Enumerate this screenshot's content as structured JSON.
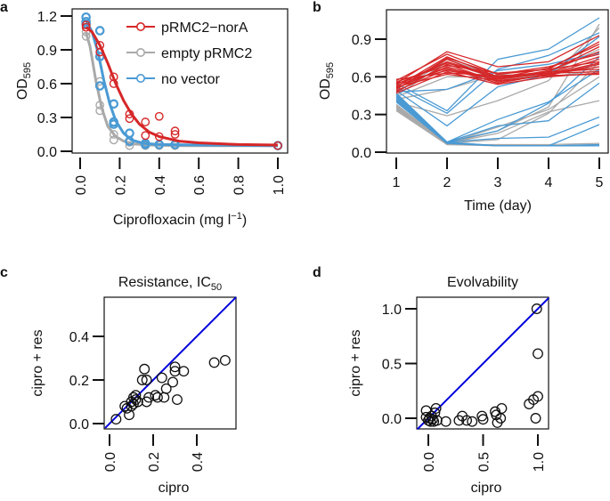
{
  "colors": {
    "red": "#d62728",
    "grey": "#a9a9a9",
    "blue": "#4a9ad4",
    "diag": "#0000dd",
    "axis": "#111111"
  },
  "chart_data": [
    {
      "panel": "a",
      "type": "scatter",
      "title": "",
      "xlabel": "Ciprofloxacin (mg l",
      "xlabel_sup": "−1",
      "xlabel_tail": ")",
      "ylabel": "OD",
      "ylabel_sub": "595",
      "xlim": [
        0,
        1.0
      ],
      "ylim": [
        0,
        1.2
      ],
      "xticks": [
        "0.0",
        "0.2",
        "0.4",
        "0.6",
        "0.8",
        "1.0"
      ],
      "yticks": [
        "0.0",
        "0.3",
        "0.6",
        "0.9",
        "1.2"
      ],
      "legend_position": "top-right",
      "series": [
        {
          "name": "pRMC2−norA",
          "color_key": "red",
          "points": [
            [
              0.03,
              1.1
            ],
            [
              0.03,
              1.12
            ],
            [
              0.1,
              0.94
            ],
            [
              0.1,
              0.88
            ],
            [
              0.17,
              0.66
            ],
            [
              0.17,
              0.6
            ],
            [
              0.25,
              0.33
            ],
            [
              0.25,
              0.29
            ],
            [
              0.33,
              0.26
            ],
            [
              0.33,
              0.14
            ],
            [
              0.4,
              0.31
            ],
            [
              0.4,
              0.13
            ],
            [
              0.48,
              0.18
            ],
            [
              0.48,
              0.15
            ],
            [
              1.0,
              0.05
            ]
          ],
          "curve": [
            [
              0.03,
              1.1
            ],
            [
              0.06,
              1.06
            ],
            [
              0.1,
              0.94
            ],
            [
              0.14,
              0.78
            ],
            [
              0.18,
              0.6
            ],
            [
              0.22,
              0.45
            ],
            [
              0.26,
              0.33
            ],
            [
              0.3,
              0.24
            ],
            [
              0.35,
              0.17
            ],
            [
              0.4,
              0.13
            ],
            [
              0.5,
              0.09
            ],
            [
              0.6,
              0.075
            ],
            [
              0.8,
              0.06
            ],
            [
              1.0,
              0.055
            ]
          ]
        },
        {
          "name": "empty pRMC2",
          "color_key": "grey",
          "points": [
            [
              0.03,
              1.02
            ],
            [
              0.03,
              1.06
            ],
            [
              0.1,
              0.62
            ],
            [
              0.1,
              0.41
            ],
            [
              0.1,
              0.36
            ],
            [
              0.17,
              0.15
            ],
            [
              0.17,
              0.1
            ],
            [
              0.25,
              0.08
            ],
            [
              0.25,
              0.05
            ],
            [
              0.33,
              0.05
            ],
            [
              0.4,
              0.05
            ],
            [
              0.48,
              0.05
            ],
            [
              1.0,
              0.05
            ]
          ],
          "curve": [
            [
              0.03,
              1.05
            ],
            [
              0.05,
              0.93
            ],
            [
              0.08,
              0.62
            ],
            [
              0.11,
              0.38
            ],
            [
              0.14,
              0.22
            ],
            [
              0.18,
              0.13
            ],
            [
              0.22,
              0.09
            ],
            [
              0.27,
              0.065
            ],
            [
              0.35,
              0.055
            ],
            [
              0.5,
              0.05
            ],
            [
              1.0,
              0.05
            ]
          ]
        },
        {
          "name": "no vector",
          "color_key": "blue",
          "points": [
            [
              0.03,
              1.19
            ],
            [
              0.03,
              1.15
            ],
            [
              0.03,
              1.13
            ],
            [
              0.1,
              1.07
            ],
            [
              0.1,
              0.84
            ],
            [
              0.1,
              0.58
            ],
            [
              0.17,
              0.42
            ],
            [
              0.17,
              0.26
            ],
            [
              0.17,
              0.24
            ],
            [
              0.25,
              0.16
            ],
            [
              0.25,
              0.09
            ],
            [
              0.33,
              0.07
            ],
            [
              0.33,
              0.06
            ],
            [
              0.4,
              0.06
            ],
            [
              0.48,
              0.06
            ],
            [
              1.0,
              0.05
            ]
          ],
          "curve": [
            [
              0.03,
              1.16
            ],
            [
              0.06,
              1.06
            ],
            [
              0.09,
              0.88
            ],
            [
              0.12,
              0.63
            ],
            [
              0.15,
              0.42
            ],
            [
              0.18,
              0.27
            ],
            [
              0.22,
              0.16
            ],
            [
              0.26,
              0.1
            ],
            [
              0.32,
              0.07
            ],
            [
              0.4,
              0.06
            ],
            [
              0.6,
              0.055
            ],
            [
              1.0,
              0.05
            ]
          ]
        }
      ]
    },
    {
      "panel": "b",
      "type": "line",
      "xlabel": "Time (day)",
      "ylabel": "OD",
      "ylabel_sub": "595",
      "xlim": [
        1,
        5
      ],
      "ylim": [
        0,
        1.1
      ],
      "xticks": [
        "1",
        "2",
        "3",
        "4",
        "5"
      ],
      "yticks": [
        "0.0",
        "0.3",
        "0.6",
        "0.9"
      ],
      "x": [
        1,
        2,
        3,
        4,
        5
      ],
      "series": [
        {
          "color_key": "red",
          "values": [
            0.55,
            0.8,
            0.68,
            0.72,
            0.93
          ]
        },
        {
          "color_key": "red",
          "values": [
            0.57,
            0.78,
            0.62,
            0.66,
            0.88
          ]
        },
        {
          "color_key": "red",
          "values": [
            0.52,
            0.76,
            0.6,
            0.64,
            0.84
          ]
        },
        {
          "color_key": "red",
          "values": [
            0.5,
            0.74,
            0.58,
            0.65,
            0.8
          ]
        },
        {
          "color_key": "red",
          "values": [
            0.54,
            0.72,
            0.6,
            0.63,
            0.76
          ]
        },
        {
          "color_key": "red",
          "values": [
            0.48,
            0.7,
            0.56,
            0.62,
            0.74
          ]
        },
        {
          "color_key": "red",
          "values": [
            0.56,
            0.69,
            0.63,
            0.66,
            0.72
          ]
        },
        {
          "color_key": "red",
          "values": [
            0.51,
            0.68,
            0.57,
            0.61,
            0.7
          ]
        },
        {
          "color_key": "red",
          "values": [
            0.53,
            0.67,
            0.55,
            0.62,
            0.68
          ]
        },
        {
          "color_key": "red",
          "values": [
            0.49,
            0.66,
            0.59,
            0.64,
            0.66
          ]
        },
        {
          "color_key": "red",
          "values": [
            0.55,
            0.65,
            0.58,
            0.63,
            0.64
          ]
        },
        {
          "color_key": "red",
          "values": [
            0.47,
            0.64,
            0.54,
            0.6,
            0.63
          ]
        },
        {
          "color_key": "red",
          "values": [
            0.58,
            0.63,
            0.61,
            0.62,
            0.71
          ]
        },
        {
          "color_key": "red",
          "values": [
            0.52,
            0.62,
            0.57,
            0.61,
            0.62
          ]
        },
        {
          "color_key": "red",
          "values": [
            0.5,
            0.75,
            0.62,
            0.68,
            0.78
          ]
        },
        {
          "color_key": "red",
          "values": [
            0.54,
            0.71,
            0.59,
            0.67,
            0.86
          ]
        },
        {
          "color_key": "grey",
          "values": [
            0.47,
            0.74,
            0.6,
            0.63,
            0.82
          ]
        },
        {
          "color_key": "grey",
          "values": [
            0.45,
            0.72,
            0.58,
            0.62,
            0.7
          ]
        },
        {
          "color_key": "grey",
          "values": [
            0.44,
            0.6,
            0.6,
            0.62,
            0.68
          ]
        },
        {
          "color_key": "grey",
          "values": [
            0.42,
            0.5,
            0.62,
            0.6,
            0.65
          ]
        },
        {
          "color_key": "grey",
          "values": [
            0.4,
            0.29,
            0.41,
            0.57,
            0.99
          ]
        },
        {
          "color_key": "grey",
          "values": [
            0.38,
            0.07,
            0.17,
            0.36,
            1.02
          ]
        },
        {
          "color_key": "grey",
          "values": [
            0.36,
            0.07,
            0.15,
            0.32,
            0.41
          ]
        },
        {
          "color_key": "grey",
          "values": [
            0.35,
            0.07,
            0.2,
            0.34,
            0.6
          ]
        },
        {
          "color_key": "grey",
          "values": [
            0.34,
            0.07,
            0.1,
            0.31,
            0.72
          ]
        },
        {
          "color_key": "grey",
          "values": [
            0.33,
            0.06,
            0.06,
            0.06,
            0.07
          ]
        },
        {
          "color_key": "grey",
          "values": [
            0.37,
            0.06,
            0.05,
            0.05,
            0.06
          ]
        },
        {
          "color_key": "blue",
          "values": [
            0.55,
            0.33,
            0.74,
            0.82,
            1.07
          ]
        },
        {
          "color_key": "blue",
          "values": [
            0.52,
            0.31,
            0.66,
            0.77,
            0.95
          ]
        },
        {
          "color_key": "blue",
          "values": [
            0.49,
            0.21,
            0.52,
            0.62,
            0.92
          ]
        },
        {
          "color_key": "blue",
          "values": [
            0.48,
            0.5,
            0.65,
            0.7,
            0.79
          ]
        },
        {
          "color_key": "blue",
          "values": [
            0.47,
            0.08,
            0.26,
            0.4,
            0.66
          ]
        },
        {
          "color_key": "blue",
          "values": [
            0.46,
            0.08,
            0.21,
            0.25,
            0.55
          ]
        },
        {
          "color_key": "blue",
          "values": [
            0.45,
            0.08,
            0.17,
            0.39,
            0.76
          ]
        },
        {
          "color_key": "blue",
          "values": [
            0.44,
            0.08,
            0.11,
            0.12,
            0.28
          ]
        },
        {
          "color_key": "blue",
          "values": [
            0.43,
            0.08,
            0.05,
            0.05,
            0.22
          ]
        },
        {
          "color_key": "blue",
          "values": [
            0.42,
            0.08,
            0.05,
            0.05,
            0.05
          ]
        },
        {
          "color_key": "blue",
          "values": [
            0.41,
            0.07,
            0.05,
            0.05,
            0.05
          ]
        },
        {
          "color_key": "blue",
          "values": [
            0.4,
            0.07,
            0.05,
            0.05,
            0.06
          ]
        }
      ]
    },
    {
      "panel": "c",
      "type": "scatter",
      "title": "Resistance, IC",
      "title_sub": "50",
      "xlabel": "cipro",
      "ylabel": "cipro + res",
      "xlim": [
        -0.02,
        0.58
      ],
      "ylim": [
        -0.02,
        0.58
      ],
      "xticks": [
        "0.0",
        "0.2",
        "0.4"
      ],
      "yticks": [
        "0.0",
        "0.2",
        "0.4"
      ],
      "identity_line": true,
      "points": [
        [
          0.03,
          0.02
        ],
        [
          0.07,
          0.08
        ],
        [
          0.08,
          0.07
        ],
        [
          0.09,
          0.04
        ],
        [
          0.1,
          0.08
        ],
        [
          0.1,
          0.1
        ],
        [
          0.11,
          0.09
        ],
        [
          0.11,
          0.12
        ],
        [
          0.12,
          0.11
        ],
        [
          0.12,
          0.13
        ],
        [
          0.13,
          0.1
        ],
        [
          0.15,
          0.2
        ],
        [
          0.16,
          0.25
        ],
        [
          0.17,
          0.2
        ],
        [
          0.17,
          0.1
        ],
        [
          0.18,
          0.12
        ],
        [
          0.21,
          0.13
        ],
        [
          0.22,
          0.12
        ],
        [
          0.24,
          0.21
        ],
        [
          0.25,
          0.12
        ],
        [
          0.26,
          0.16
        ],
        [
          0.29,
          0.19
        ],
        [
          0.3,
          0.24
        ],
        [
          0.3,
          0.26
        ],
        [
          0.31,
          0.11
        ],
        [
          0.34,
          0.24
        ],
        [
          0.48,
          0.28
        ],
        [
          0.53,
          0.29
        ]
      ]
    },
    {
      "panel": "d",
      "type": "scatter",
      "title": "Evolvability",
      "xlabel": "cipro",
      "ylabel": "cipro + res",
      "xlim": [
        -0.1,
        1.1
      ],
      "ylim": [
        -0.1,
        1.1
      ],
      "xticks": [
        "0.0",
        "0.5",
        "1.0"
      ],
      "yticks": [
        "0.0",
        "0.5",
        "1.0"
      ],
      "identity_line": true,
      "points": [
        [
          -0.02,
          0.07
        ],
        [
          -0.02,
          0.01
        ],
        [
          0.0,
          -0.02
        ],
        [
          0.01,
          0.0
        ],
        [
          0.02,
          -0.03
        ],
        [
          0.03,
          0.02
        ],
        [
          0.04,
          -0.01
        ],
        [
          0.05,
          -0.03
        ],
        [
          0.06,
          0.05
        ],
        [
          0.07,
          0.09
        ],
        [
          0.08,
          -0.02
        ],
        [
          0.16,
          -0.03
        ],
        [
          0.28,
          -0.02
        ],
        [
          0.31,
          0.02
        ],
        [
          0.35,
          -0.02
        ],
        [
          0.4,
          -0.03
        ],
        [
          0.49,
          0.02
        ],
        [
          0.5,
          -0.01
        ],
        [
          0.61,
          0.06
        ],
        [
          0.62,
          0.03
        ],
        [
          0.63,
          -0.04
        ],
        [
          0.66,
          0.0
        ],
        [
          0.67,
          0.09
        ],
        [
          0.92,
          0.13
        ],
        [
          0.96,
          0.17
        ],
        [
          1.0,
          0.2
        ],
        [
          0.98,
          0.0
        ],
        [
          1.0,
          0.59
        ],
        [
          0.99,
          1.0
        ]
      ]
    }
  ],
  "panels": {
    "a": {
      "label": "a",
      "xlabel": "Ciprofloxacin (mg l",
      "xlabel_sup": "−1",
      "xlabel_tail": ")"
    },
    "b": {
      "label": "b"
    },
    "c": {
      "label": "c"
    },
    "d": {
      "label": "d"
    }
  }
}
